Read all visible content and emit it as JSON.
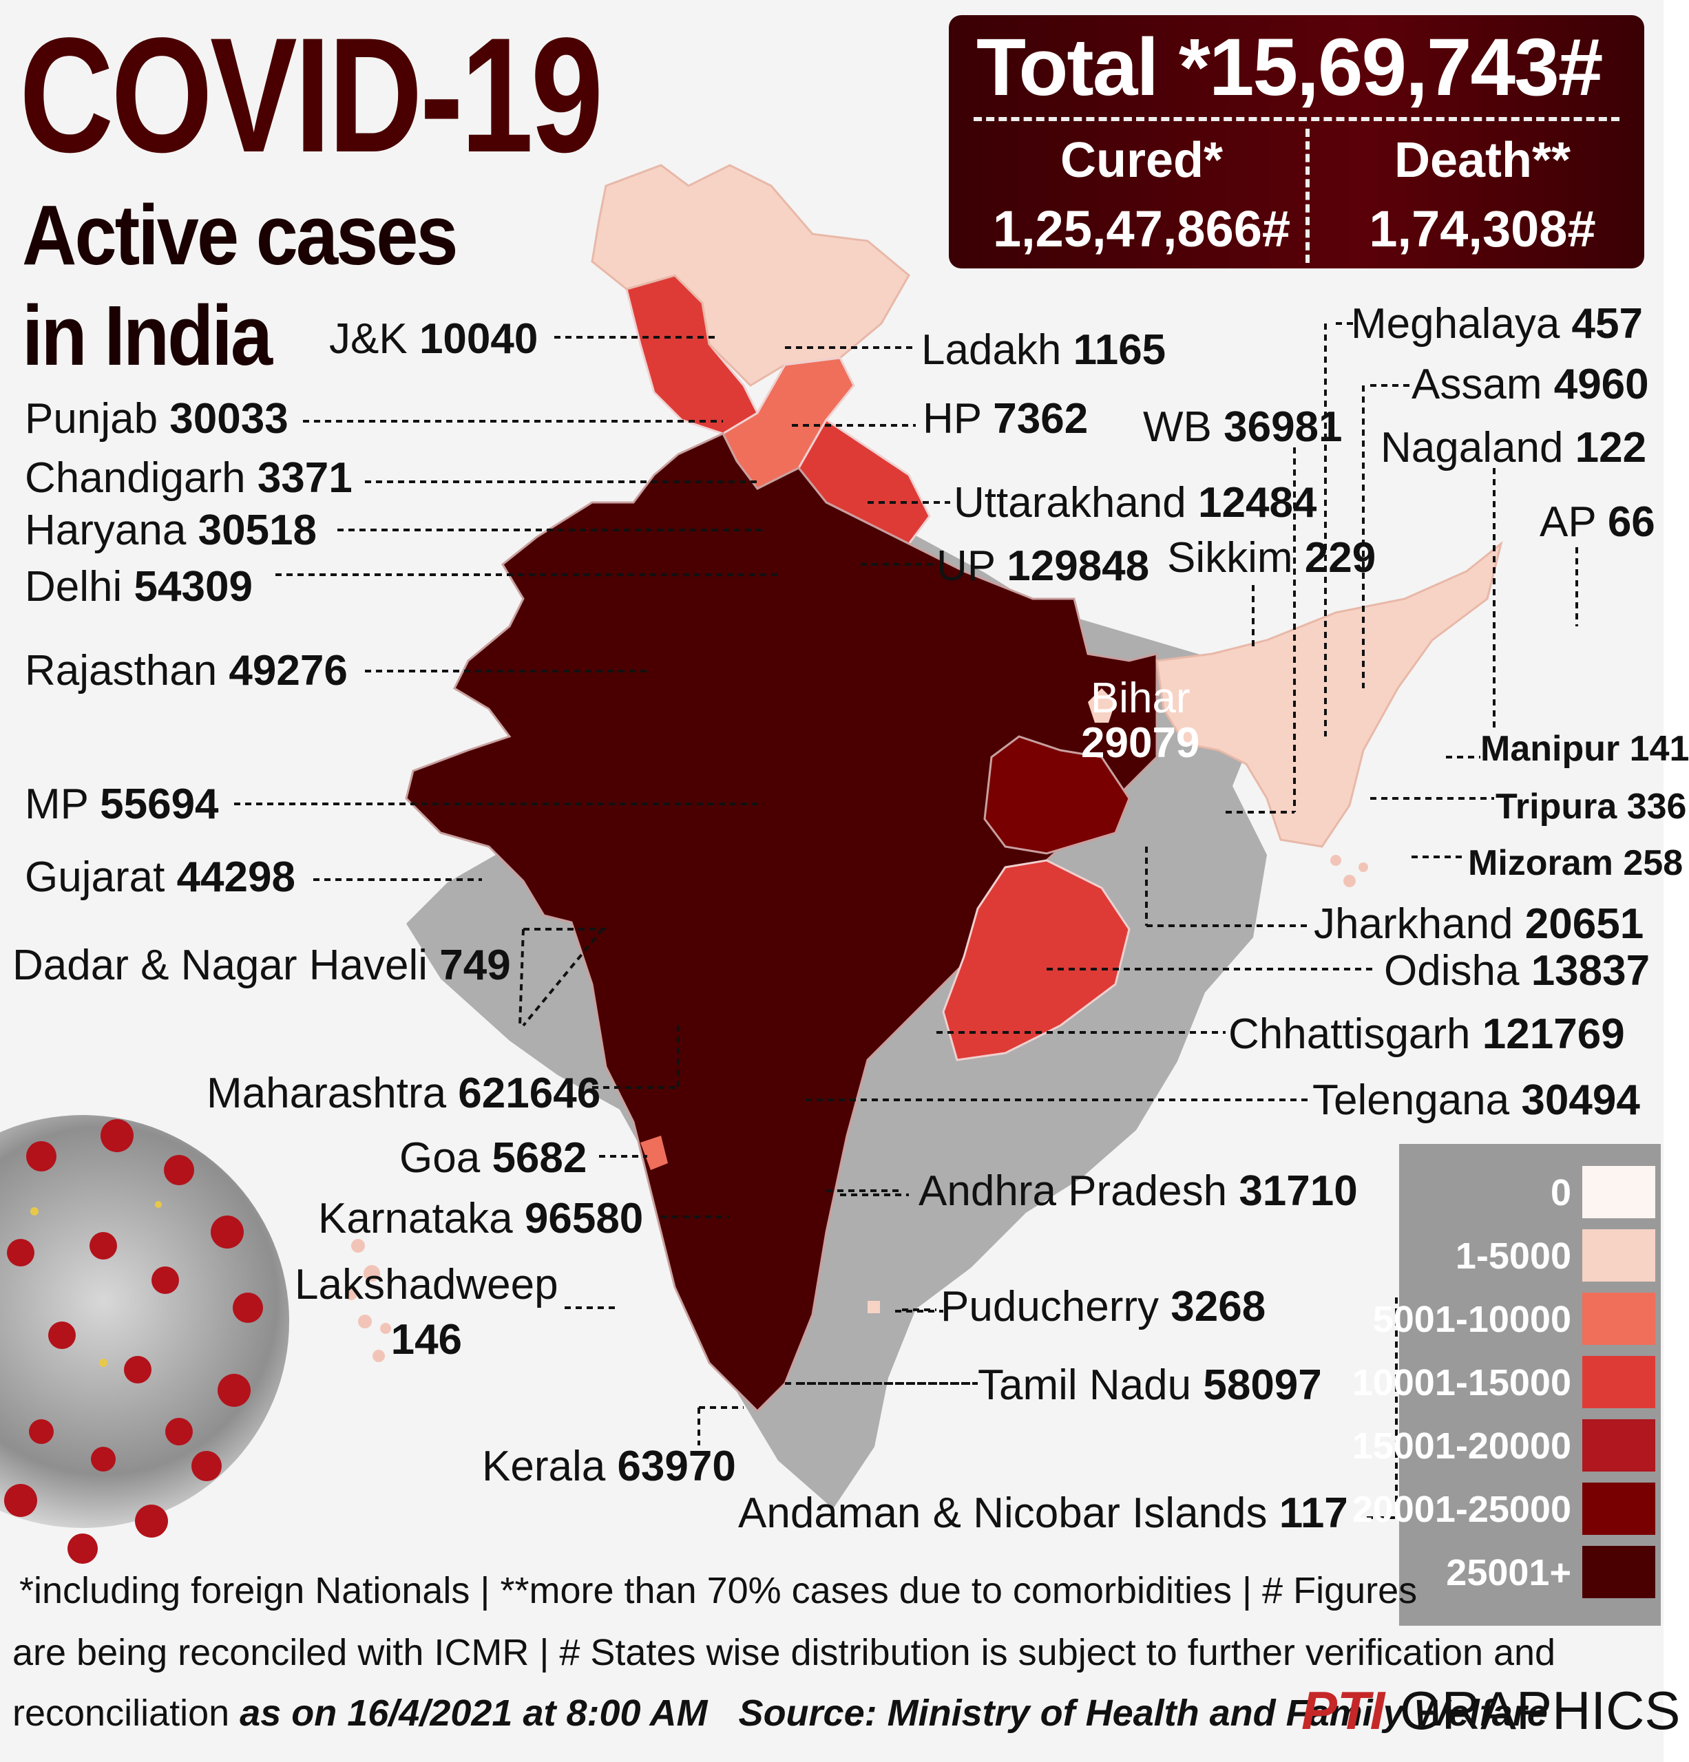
{
  "header": {
    "title": "COVID-19",
    "subtitle_line1": "Active cases",
    "subtitle_line2": "in India"
  },
  "stats": {
    "total_label": "Total",
    "total_value": "*15,69,743#",
    "cured_label": "Cured*",
    "cured_value": "1,25,47,866#",
    "death_label": "Death**",
    "death_value": "1,74,308#"
  },
  "states": [
    {
      "name": "J&K",
      "value": "10040"
    },
    {
      "name": "Ladakh",
      "value": "1165"
    },
    {
      "name": "Punjab",
      "value": "30033"
    },
    {
      "name": "HP",
      "value": "7362"
    },
    {
      "name": "Chandigarh",
      "value": "3371"
    },
    {
      "name": "Uttarakhand",
      "value": "12484"
    },
    {
      "name": "Haryana",
      "value": "30518"
    },
    {
      "name": "UP",
      "value": "129848"
    },
    {
      "name": "Delhi",
      "value": "54309"
    },
    {
      "name": "Rajasthan",
      "value": "49276"
    },
    {
      "name": "MP",
      "value": "55694"
    },
    {
      "name": "Gujarat",
      "value": "44298"
    },
    {
      "name": "Dadar & Nagar Haveli",
      "value": "749"
    },
    {
      "name": "Maharashtra",
      "value": "621646"
    },
    {
      "name": "Goa",
      "value": "5682"
    },
    {
      "name": "Karnataka",
      "value": "96580"
    },
    {
      "name": "Lakshadweep",
      "value": "146"
    },
    {
      "name": "Kerala",
      "value": "63970"
    },
    {
      "name": "Meghalaya",
      "value": "457"
    },
    {
      "name": "Assam",
      "value": "4960"
    },
    {
      "name": "WB",
      "value": "36981"
    },
    {
      "name": "Nagaland",
      "value": "122"
    },
    {
      "name": "AP",
      "value": "66"
    },
    {
      "name": "Sikkim",
      "value": "229"
    },
    {
      "name": "Bihar",
      "value": "29079"
    },
    {
      "name": "Manipur",
      "value": "141"
    },
    {
      "name": "Tripura",
      "value": "336"
    },
    {
      "name": "Mizoram",
      "value": "258"
    },
    {
      "name": "Jharkhand",
      "value": "20651"
    },
    {
      "name": "Odisha",
      "value": "13837"
    },
    {
      "name": "Chhattisgarh",
      "value": "121769"
    },
    {
      "name": "Telengana",
      "value": "30494"
    },
    {
      "name": "Andhra Pradesh",
      "value": "31710"
    },
    {
      "name": "Puducherry",
      "value": "3268"
    },
    {
      "name": "Tamil Nadu",
      "value": "58097"
    },
    {
      "name": "Andaman & Nicobar Islands",
      "value": "117"
    }
  ],
  "legend": [
    {
      "label": "0",
      "color": "#fdf5f2"
    },
    {
      "label": "1-5000",
      "color": "#f7d3c5"
    },
    {
      "label": "5001-10000",
      "color": "#ef6f5b"
    },
    {
      "label": "10001-15000",
      "color": "#de3b37"
    },
    {
      "label": "15001-20000",
      "color": "#b0171f"
    },
    {
      "label": "20001-25000",
      "color": "#780000"
    },
    {
      "label": "25001+",
      "color": "#4a0000"
    }
  ],
  "footer": {
    "line1": "*including foreign Nationals | **more than 70% cases due to comorbidities | # Figures",
    "line2": "are being reconciled with ICMR  | # States wise distribution is subject to further verification and",
    "line3_plain": "reconciliation ",
    "as_on": "as on 16/4/2021 at 8:00 AM",
    "source": "Source: Ministry of Health and Family Welfare",
    "credit_logo": "PTI",
    "credit_text": "GRAPHICS"
  }
}
